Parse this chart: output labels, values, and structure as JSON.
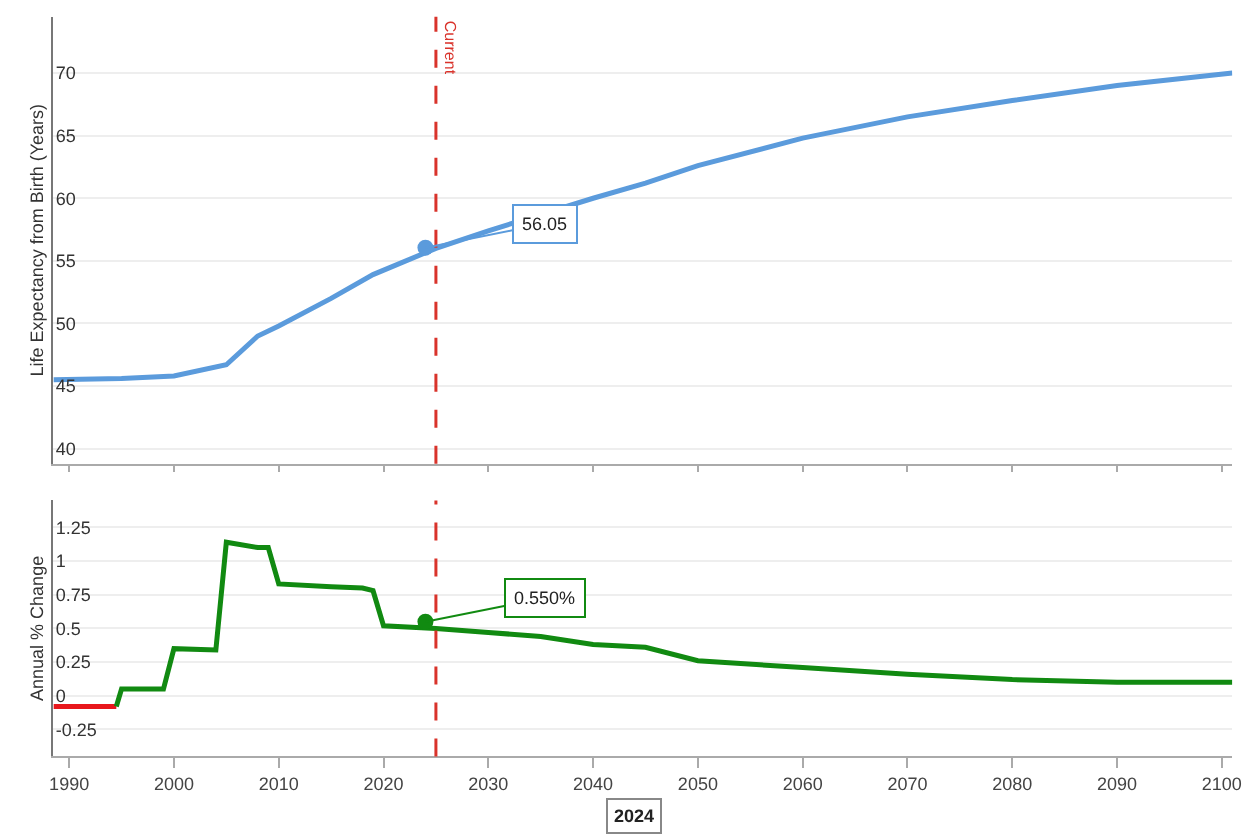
{
  "chart_data": [
    {
      "type": "line",
      "ylabel": "Life Expectancy from Birth (Years)",
      "xlim": [
        1988.5,
        2101
      ],
      "xticks": [
        1990,
        2000,
        2010,
        2020,
        2030,
        2040,
        2050,
        2060,
        2070,
        2080,
        2090,
        2100
      ],
      "ylim": [
        38.8,
        74.5
      ],
      "yticks": [
        40,
        45,
        50,
        55,
        60,
        65,
        70
      ],
      "grid": "y",
      "tick_labels": "y",
      "marker": "none",
      "series": [
        {
          "color": "#5b9bdc",
          "x": [
            1988.5,
            1995,
            2000,
            2005,
            2008,
            2010,
            2015,
            2019,
            2025,
            2030,
            2040,
            2045,
            2050,
            2060,
            2070,
            2080,
            2090,
            2101
          ],
          "values": [
            45.5,
            45.6,
            45.8,
            46.7,
            49.0,
            49.8,
            52.0,
            53.9,
            56.0,
            57.4,
            60.0,
            61.2,
            62.6,
            64.8,
            66.5,
            67.8,
            69.0,
            70.0
          ]
        }
      ],
      "ref_lines": [
        {
          "axis": "x",
          "value": 2025,
          "label": "Current",
          "color": "#d9332b",
          "line_style": "dashed"
        }
      ],
      "annotations": [
        {
          "text": "56.05",
          "x": 2024,
          "y": 56.05
        }
      ]
    },
    {
      "type": "line",
      "ylabel": "Annual % Change",
      "xlim": [
        1988.5,
        2101
      ],
      "xticks": [
        1990,
        2000,
        2010,
        2020,
        2030,
        2040,
        2050,
        2060,
        2070,
        2080,
        2090,
        2100
      ],
      "ylim": [
        -0.45,
        1.45
      ],
      "yticks": [
        {
          "value": -0.25,
          "label": "-0.25"
        },
        0,
        {
          "value": 0.25,
          "label": "0.25"
        },
        {
          "value": 0.5,
          "label": "0.5"
        },
        {
          "value": 0.75,
          "label": "0.75"
        },
        1,
        {
          "value": 1.25,
          "label": "1.25"
        }
      ],
      "grid": "y",
      "marker": "none",
      "series": [
        {
          "color": "#e8171c",
          "x": [
            1988.5,
            1994.5
          ],
          "values": [
            -0.08,
            -0.08
          ]
        },
        {
          "color": "#118a11",
          "x": [
            1994.5,
            1995,
            1999,
            2000,
            2004,
            2005,
            2008,
            2009,
            2010,
            2015,
            2018,
            2019,
            2020,
            2025,
            2030,
            2035,
            2040,
            2045,
            2050,
            2060,
            2070,
            2080,
            2090,
            2101
          ],
          "values": [
            -0.08,
            0.05,
            0.05,
            0.35,
            0.34,
            1.14,
            1.1,
            1.1,
            0.83,
            0.81,
            0.8,
            0.78,
            0.52,
            0.5,
            0.47,
            0.44,
            0.38,
            0.36,
            0.26,
            0.21,
            0.16,
            0.12,
            0.1,
            0.1
          ]
        }
      ],
      "ref_lines": [
        {
          "axis": "x",
          "value": 2025,
          "color": "#d9332b",
          "line_style": "dashed"
        }
      ],
      "annotations": [
        {
          "text": "0.550%",
          "x": 2024,
          "y": 0.55
        },
        "2024"
      ]
    }
  ]
}
